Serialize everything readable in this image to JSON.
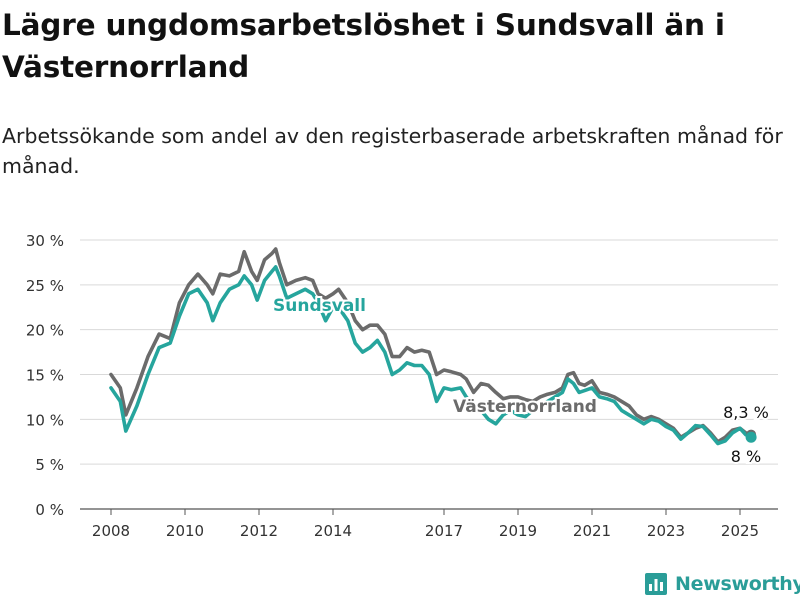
{
  "title": "Lägre ungdomsarbetslöshet i Sundsvall än i Västernorrland",
  "subtitle": "Arbetssökande som andel av den registerbaserade arbetskraften månad för månad.",
  "brand": {
    "name": "Newsworthy",
    "color": "#2a9d98",
    "icon": "bar-chart-logo-icon"
  },
  "chart_data": {
    "type": "line",
    "ylim": [
      0,
      30
    ],
    "y_ticks": [
      0,
      5,
      10,
      15,
      20,
      25,
      30
    ],
    "y_tick_labels": [
      "0 %",
      "5 %",
      "10 %",
      "15 %",
      "20 %",
      "25 %",
      "30 %"
    ],
    "x_ticks": [
      2008,
      2010,
      2012,
      2014,
      2017,
      2019,
      2021,
      2023,
      2025
    ],
    "x_tick_labels": [
      "2008",
      "2010",
      "2012",
      "2014",
      "2017",
      "2019",
      "2021",
      "2023",
      "2025"
    ],
    "grid": true,
    "series": [
      {
        "name": "Västernorrland",
        "color": "#6b6b6b",
        "points": [
          [
            2008.0,
            15.0
          ],
          [
            2008.25,
            13.5
          ],
          [
            2008.4,
            10.5
          ],
          [
            2008.7,
            13.5
          ],
          [
            2009.0,
            17.0
          ],
          [
            2009.3,
            19.5
          ],
          [
            2009.6,
            19.0
          ],
          [
            2009.85,
            23.0
          ],
          [
            2010.1,
            25.0
          ],
          [
            2010.35,
            26.2
          ],
          [
            2010.6,
            25.0
          ],
          [
            2010.75,
            24.0
          ],
          [
            2010.95,
            26.2
          ],
          [
            2011.2,
            26.0
          ],
          [
            2011.45,
            26.5
          ],
          [
            2011.6,
            28.7
          ],
          [
            2011.8,
            26.5
          ],
          [
            2011.95,
            25.5
          ],
          [
            2012.15,
            27.8
          ],
          [
            2012.35,
            28.5
          ],
          [
            2012.45,
            29.0
          ],
          [
            2012.55,
            27.5
          ],
          [
            2012.75,
            25.0
          ],
          [
            2013.0,
            25.5
          ],
          [
            2013.25,
            25.8
          ],
          [
            2013.45,
            25.5
          ],
          [
            2013.6,
            24.0
          ],
          [
            2013.8,
            23.5
          ],
          [
            2014.0,
            24.0
          ],
          [
            2014.15,
            24.5
          ],
          [
            2014.4,
            23.0
          ],
          [
            2014.6,
            21.0
          ],
          [
            2014.8,
            20.0
          ],
          [
            2015.0,
            20.5
          ],
          [
            2015.2,
            20.5
          ],
          [
            2015.4,
            19.5
          ],
          [
            2015.6,
            17.0
          ],
          [
            2015.8,
            17.0
          ],
          [
            2016.0,
            18.0
          ],
          [
            2016.2,
            17.5
          ],
          [
            2016.4,
            17.7
          ],
          [
            2016.6,
            17.5
          ],
          [
            2016.8,
            15.0
          ],
          [
            2017.0,
            15.5
          ],
          [
            2017.2,
            15.3
          ],
          [
            2017.45,
            15.0
          ],
          [
            2017.6,
            14.5
          ],
          [
            2017.8,
            13.0
          ],
          [
            2018.0,
            14.0
          ],
          [
            2018.2,
            13.8
          ],
          [
            2018.4,
            13.0
          ],
          [
            2018.6,
            12.3
          ],
          [
            2018.8,
            12.5
          ],
          [
            2019.0,
            12.5
          ],
          [
            2019.2,
            12.2
          ],
          [
            2019.4,
            12.0
          ],
          [
            2019.6,
            12.5
          ],
          [
            2019.8,
            12.8
          ],
          [
            2020.0,
            13.0
          ],
          [
            2020.2,
            13.5
          ],
          [
            2020.35,
            15.0
          ],
          [
            2020.5,
            15.2
          ],
          [
            2020.65,
            14.0
          ],
          [
            2020.8,
            13.8
          ],
          [
            2021.0,
            14.3
          ],
          [
            2021.2,
            13.0
          ],
          [
            2021.4,
            12.8
          ],
          [
            2021.6,
            12.5
          ],
          [
            2021.8,
            12.0
          ],
          [
            2022.0,
            11.5
          ],
          [
            2022.2,
            10.5
          ],
          [
            2022.4,
            10.0
          ],
          [
            2022.6,
            10.3
          ],
          [
            2022.8,
            10.0
          ],
          [
            2023.0,
            9.5
          ],
          [
            2023.2,
            9.0
          ],
          [
            2023.4,
            8.0
          ],
          [
            2023.6,
            8.5
          ],
          [
            2023.8,
            9.0
          ],
          [
            2024.0,
            9.3
          ],
          [
            2024.2,
            8.5
          ],
          [
            2024.4,
            7.5
          ],
          [
            2024.6,
            8.0
          ],
          [
            2024.8,
            8.8
          ],
          [
            2025.0,
            9.0
          ],
          [
            2025.15,
            8.5
          ],
          [
            2025.3,
            8.3
          ]
        ],
        "end_label": "8,3 %"
      },
      {
        "name": "Sundsvall",
        "color": "#26a59d",
        "points": [
          [
            2008.0,
            13.5
          ],
          [
            2008.25,
            12.0
          ],
          [
            2008.4,
            8.7
          ],
          [
            2008.7,
            11.5
          ],
          [
            2009.0,
            15.0
          ],
          [
            2009.3,
            18.0
          ],
          [
            2009.6,
            18.5
          ],
          [
            2009.85,
            21.5
          ],
          [
            2010.1,
            24.0
          ],
          [
            2010.35,
            24.5
          ],
          [
            2010.6,
            23.0
          ],
          [
            2010.75,
            21.0
          ],
          [
            2010.95,
            23.0
          ],
          [
            2011.2,
            24.5
          ],
          [
            2011.45,
            25.0
          ],
          [
            2011.6,
            26.0
          ],
          [
            2011.8,
            25.0
          ],
          [
            2011.95,
            23.3
          ],
          [
            2012.15,
            25.5
          ],
          [
            2012.35,
            26.5
          ],
          [
            2012.45,
            27.0
          ],
          [
            2012.55,
            26.0
          ],
          [
            2012.75,
            23.5
          ],
          [
            2013.0,
            24.0
          ],
          [
            2013.25,
            24.5
          ],
          [
            2013.45,
            24.0
          ],
          [
            2013.6,
            23.0
          ],
          [
            2013.8,
            21.0
          ],
          [
            2014.0,
            22.5
          ],
          [
            2014.15,
            22.5
          ],
          [
            2014.4,
            21.0
          ],
          [
            2014.6,
            18.5
          ],
          [
            2014.8,
            17.5
          ],
          [
            2015.0,
            18.0
          ],
          [
            2015.2,
            18.8
          ],
          [
            2015.4,
            17.5
          ],
          [
            2015.6,
            15.0
          ],
          [
            2015.8,
            15.5
          ],
          [
            2016.0,
            16.3
          ],
          [
            2016.2,
            16.0
          ],
          [
            2016.4,
            16.0
          ],
          [
            2016.6,
            15.0
          ],
          [
            2016.8,
            12.0
          ],
          [
            2017.0,
            13.5
          ],
          [
            2017.2,
            13.3
          ],
          [
            2017.45,
            13.5
          ],
          [
            2017.6,
            12.5
          ],
          [
            2017.8,
            11.5
          ],
          [
            2018.0,
            11.0
          ],
          [
            2018.2,
            10.0
          ],
          [
            2018.4,
            9.5
          ],
          [
            2018.6,
            10.5
          ],
          [
            2018.8,
            11.0
          ],
          [
            2019.0,
            10.5
          ],
          [
            2019.2,
            10.3
          ],
          [
            2019.4,
            11.0
          ],
          [
            2019.6,
            11.5
          ],
          [
            2019.8,
            12.0
          ],
          [
            2020.0,
            12.5
          ],
          [
            2020.2,
            13.0
          ],
          [
            2020.35,
            14.5
          ],
          [
            2020.5,
            14.0
          ],
          [
            2020.65,
            13.0
          ],
          [
            2020.8,
            13.2
          ],
          [
            2021.0,
            13.5
          ],
          [
            2021.2,
            12.5
          ],
          [
            2021.4,
            12.3
          ],
          [
            2021.6,
            12.0
          ],
          [
            2021.8,
            11.0
          ],
          [
            2022.0,
            10.5
          ],
          [
            2022.2,
            10.0
          ],
          [
            2022.4,
            9.5
          ],
          [
            2022.6,
            10.0
          ],
          [
            2022.8,
            9.8
          ],
          [
            2023.0,
            9.2
          ],
          [
            2023.2,
            8.8
          ],
          [
            2023.4,
            7.8
          ],
          [
            2023.6,
            8.5
          ],
          [
            2023.8,
            9.3
          ],
          [
            2024.0,
            9.2
          ],
          [
            2024.2,
            8.3
          ],
          [
            2024.4,
            7.3
          ],
          [
            2024.6,
            7.6
          ],
          [
            2024.8,
            8.5
          ],
          [
            2025.0,
            9.0
          ],
          [
            2025.15,
            8.3
          ],
          [
            2025.3,
            8.0
          ]
        ],
        "end_label": "8 %"
      }
    ]
  }
}
